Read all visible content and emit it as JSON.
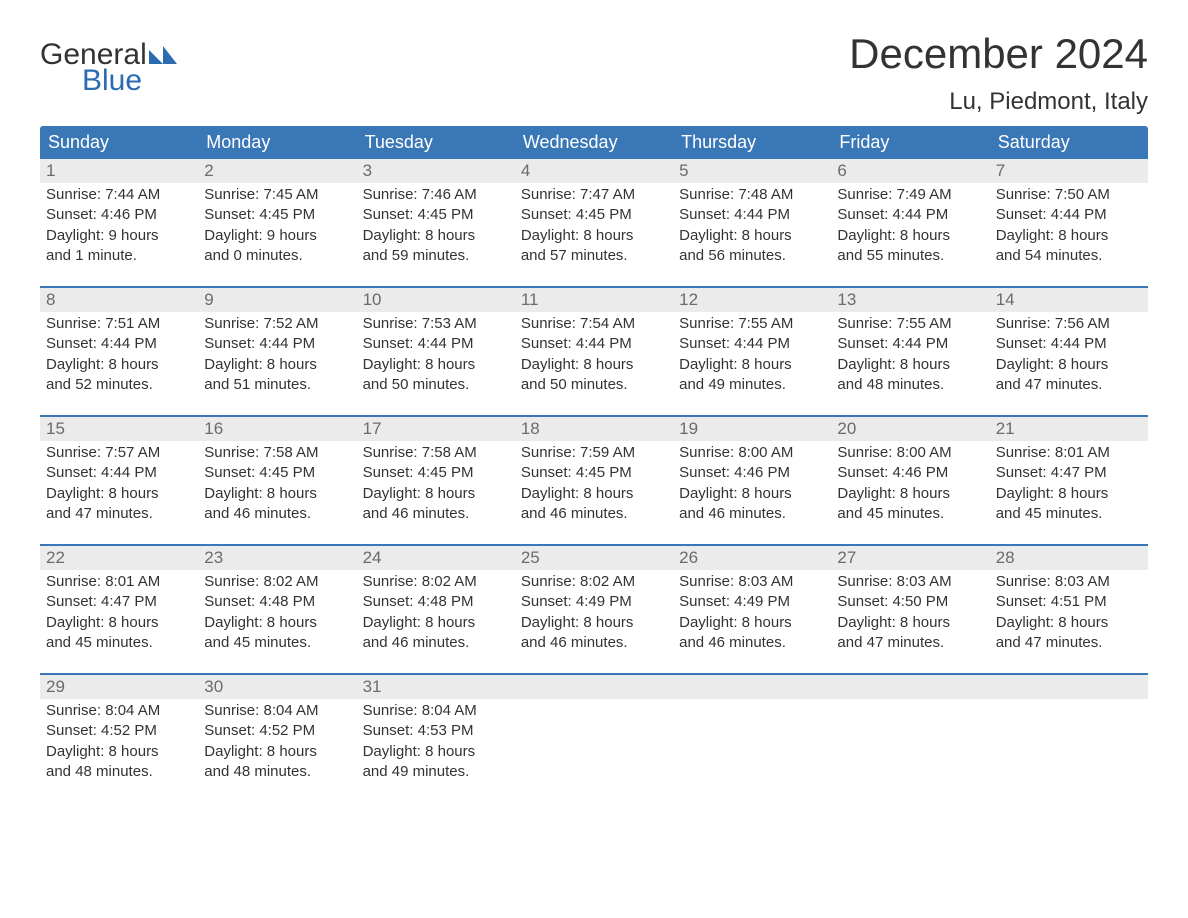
{
  "brand": {
    "name_part1": "General",
    "name_part2": "Blue",
    "text_color": "#333333",
    "accent_color": "#2b6bb2",
    "mark_color": "#2b6bb2"
  },
  "title": "December 2024",
  "location": "Lu, Piedmont, Italy",
  "colors": {
    "header_bg": "#3a77b7",
    "header_text": "#ffffff",
    "daynum_bg": "#ebebeb",
    "daynum_text": "#6b6b6b",
    "body_text": "#333333",
    "week_border": "#3a77b7",
    "page_bg": "#ffffff"
  },
  "typography": {
    "title_fontsize": 42,
    "location_fontsize": 24,
    "dayheader_fontsize": 18,
    "daynum_fontsize": 17,
    "body_fontsize": 15,
    "font_family": "Arial"
  },
  "day_names": [
    "Sunday",
    "Monday",
    "Tuesday",
    "Wednesday",
    "Thursday",
    "Friday",
    "Saturday"
  ],
  "weeks": [
    [
      {
        "n": "1",
        "sunrise": "Sunrise: 7:44 AM",
        "sunset": "Sunset: 4:46 PM",
        "day1": "Daylight: 9 hours",
        "day2": "and 1 minute."
      },
      {
        "n": "2",
        "sunrise": "Sunrise: 7:45 AM",
        "sunset": "Sunset: 4:45 PM",
        "day1": "Daylight: 9 hours",
        "day2": "and 0 minutes."
      },
      {
        "n": "3",
        "sunrise": "Sunrise: 7:46 AM",
        "sunset": "Sunset: 4:45 PM",
        "day1": "Daylight: 8 hours",
        "day2": "and 59 minutes."
      },
      {
        "n": "4",
        "sunrise": "Sunrise: 7:47 AM",
        "sunset": "Sunset: 4:45 PM",
        "day1": "Daylight: 8 hours",
        "day2": "and 57 minutes."
      },
      {
        "n": "5",
        "sunrise": "Sunrise: 7:48 AM",
        "sunset": "Sunset: 4:44 PM",
        "day1": "Daylight: 8 hours",
        "day2": "and 56 minutes."
      },
      {
        "n": "6",
        "sunrise": "Sunrise: 7:49 AM",
        "sunset": "Sunset: 4:44 PM",
        "day1": "Daylight: 8 hours",
        "day2": "and 55 minutes."
      },
      {
        "n": "7",
        "sunrise": "Sunrise: 7:50 AM",
        "sunset": "Sunset: 4:44 PM",
        "day1": "Daylight: 8 hours",
        "day2": "and 54 minutes."
      }
    ],
    [
      {
        "n": "8",
        "sunrise": "Sunrise: 7:51 AM",
        "sunset": "Sunset: 4:44 PM",
        "day1": "Daylight: 8 hours",
        "day2": "and 52 minutes."
      },
      {
        "n": "9",
        "sunrise": "Sunrise: 7:52 AM",
        "sunset": "Sunset: 4:44 PM",
        "day1": "Daylight: 8 hours",
        "day2": "and 51 minutes."
      },
      {
        "n": "10",
        "sunrise": "Sunrise: 7:53 AM",
        "sunset": "Sunset: 4:44 PM",
        "day1": "Daylight: 8 hours",
        "day2": "and 50 minutes."
      },
      {
        "n": "11",
        "sunrise": "Sunrise: 7:54 AM",
        "sunset": "Sunset: 4:44 PM",
        "day1": "Daylight: 8 hours",
        "day2": "and 50 minutes."
      },
      {
        "n": "12",
        "sunrise": "Sunrise: 7:55 AM",
        "sunset": "Sunset: 4:44 PM",
        "day1": "Daylight: 8 hours",
        "day2": "and 49 minutes."
      },
      {
        "n": "13",
        "sunrise": "Sunrise: 7:55 AM",
        "sunset": "Sunset: 4:44 PM",
        "day1": "Daylight: 8 hours",
        "day2": "and 48 minutes."
      },
      {
        "n": "14",
        "sunrise": "Sunrise: 7:56 AM",
        "sunset": "Sunset: 4:44 PM",
        "day1": "Daylight: 8 hours",
        "day2": "and 47 minutes."
      }
    ],
    [
      {
        "n": "15",
        "sunrise": "Sunrise: 7:57 AM",
        "sunset": "Sunset: 4:44 PM",
        "day1": "Daylight: 8 hours",
        "day2": "and 47 minutes."
      },
      {
        "n": "16",
        "sunrise": "Sunrise: 7:58 AM",
        "sunset": "Sunset: 4:45 PM",
        "day1": "Daylight: 8 hours",
        "day2": "and 46 minutes."
      },
      {
        "n": "17",
        "sunrise": "Sunrise: 7:58 AM",
        "sunset": "Sunset: 4:45 PM",
        "day1": "Daylight: 8 hours",
        "day2": "and 46 minutes."
      },
      {
        "n": "18",
        "sunrise": "Sunrise: 7:59 AM",
        "sunset": "Sunset: 4:45 PM",
        "day1": "Daylight: 8 hours",
        "day2": "and 46 minutes."
      },
      {
        "n": "19",
        "sunrise": "Sunrise: 8:00 AM",
        "sunset": "Sunset: 4:46 PM",
        "day1": "Daylight: 8 hours",
        "day2": "and 46 minutes."
      },
      {
        "n": "20",
        "sunrise": "Sunrise: 8:00 AM",
        "sunset": "Sunset: 4:46 PM",
        "day1": "Daylight: 8 hours",
        "day2": "and 45 minutes."
      },
      {
        "n": "21",
        "sunrise": "Sunrise: 8:01 AM",
        "sunset": "Sunset: 4:47 PM",
        "day1": "Daylight: 8 hours",
        "day2": "and 45 minutes."
      }
    ],
    [
      {
        "n": "22",
        "sunrise": "Sunrise: 8:01 AM",
        "sunset": "Sunset: 4:47 PM",
        "day1": "Daylight: 8 hours",
        "day2": "and 45 minutes."
      },
      {
        "n": "23",
        "sunrise": "Sunrise: 8:02 AM",
        "sunset": "Sunset: 4:48 PM",
        "day1": "Daylight: 8 hours",
        "day2": "and 45 minutes."
      },
      {
        "n": "24",
        "sunrise": "Sunrise: 8:02 AM",
        "sunset": "Sunset: 4:48 PM",
        "day1": "Daylight: 8 hours",
        "day2": "and 46 minutes."
      },
      {
        "n": "25",
        "sunrise": "Sunrise: 8:02 AM",
        "sunset": "Sunset: 4:49 PM",
        "day1": "Daylight: 8 hours",
        "day2": "and 46 minutes."
      },
      {
        "n": "26",
        "sunrise": "Sunrise: 8:03 AM",
        "sunset": "Sunset: 4:49 PM",
        "day1": "Daylight: 8 hours",
        "day2": "and 46 minutes."
      },
      {
        "n": "27",
        "sunrise": "Sunrise: 8:03 AM",
        "sunset": "Sunset: 4:50 PM",
        "day1": "Daylight: 8 hours",
        "day2": "and 47 minutes."
      },
      {
        "n": "28",
        "sunrise": "Sunrise: 8:03 AM",
        "sunset": "Sunset: 4:51 PM",
        "day1": "Daylight: 8 hours",
        "day2": "and 47 minutes."
      }
    ],
    [
      {
        "n": "29",
        "sunrise": "Sunrise: 8:04 AM",
        "sunset": "Sunset: 4:52 PM",
        "day1": "Daylight: 8 hours",
        "day2": "and 48 minutes."
      },
      {
        "n": "30",
        "sunrise": "Sunrise: 8:04 AM",
        "sunset": "Sunset: 4:52 PM",
        "day1": "Daylight: 8 hours",
        "day2": "and 48 minutes."
      },
      {
        "n": "31",
        "sunrise": "Sunrise: 8:04 AM",
        "sunset": "Sunset: 4:53 PM",
        "day1": "Daylight: 8 hours",
        "day2": "and 49 minutes."
      },
      {
        "n": "",
        "sunrise": "",
        "sunset": "",
        "day1": "",
        "day2": ""
      },
      {
        "n": "",
        "sunrise": "",
        "sunset": "",
        "day1": "",
        "day2": ""
      },
      {
        "n": "",
        "sunrise": "",
        "sunset": "",
        "day1": "",
        "day2": ""
      },
      {
        "n": "",
        "sunrise": "",
        "sunset": "",
        "day1": "",
        "day2": ""
      }
    ]
  ]
}
